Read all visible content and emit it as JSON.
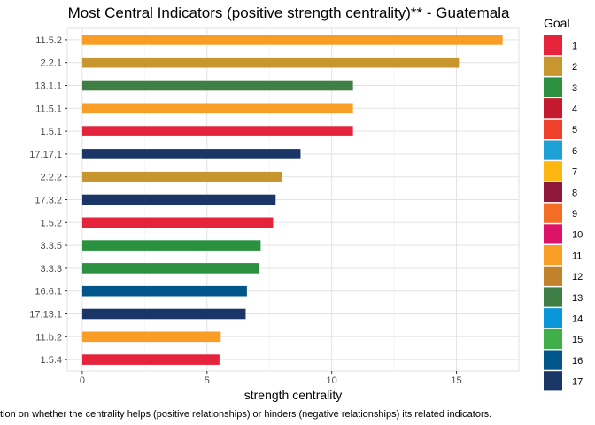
{
  "chart_data": {
    "type": "bar",
    "orientation": "horizontal",
    "title": "Most Central Indicators (positive strength centrality)** - Guatemala",
    "xlabel": "strength centrality",
    "ylabel": "",
    "caption": "tion on whether the centrality helps (positive relationships) or hinders (negative relationships) its related indicators.",
    "xlim": [
      -0.6,
      17.5
    ],
    "xticks": [
      0,
      5,
      10,
      15
    ],
    "grid": true,
    "legend": {
      "title": "Goal",
      "placement": "right"
    },
    "categories": [
      "11.5.2",
      "2.2.1",
      "13.1.1",
      "11.5.1",
      "1.5.1",
      "17.17.1",
      "2.2.2",
      "17.3.2",
      "1.5.2",
      "3.3.5",
      "3.3.3",
      "16.6.1",
      "17.13.1",
      "11.b.2",
      "1.5.4"
    ],
    "values": [
      16.85,
      15.1,
      10.85,
      10.85,
      10.85,
      8.75,
      8.0,
      7.75,
      7.65,
      7.15,
      7.1,
      6.6,
      6.55,
      5.55,
      5.5
    ],
    "goals": [
      "11",
      "2",
      "13",
      "11",
      "1",
      "17",
      "2",
      "17",
      "1",
      "3",
      "3",
      "16",
      "17",
      "11",
      "1"
    ]
  },
  "goal_colors": {
    "1": "#e5243b",
    "2": "#c8962e",
    "3": "#2b9140",
    "4": "#c5192d",
    "5": "#ef402b",
    "6": "#1ea2d6",
    "7": "#fdb713",
    "8": "#8f1838",
    "9": "#f36d25",
    "10": "#dd1367",
    "11": "#f99d26",
    "12": "#c2822b",
    "13": "#3f7e44",
    "14": "#0a97d9",
    "15": "#40ae49",
    "16": "#00558a",
    "17": "#1a3666"
  },
  "legend_items": [
    "1",
    "2",
    "3",
    "4",
    "5",
    "6",
    "7",
    "8",
    "9",
    "10",
    "11",
    "12",
    "13",
    "14",
    "15",
    "16",
    "17"
  ]
}
